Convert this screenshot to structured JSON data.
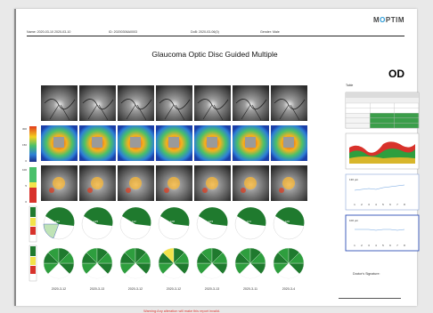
{
  "logo": {
    "prefix": "M",
    "o": "O",
    "suffix": "PTIM"
  },
  "header": {
    "name": "Name: 2020-03-10 2020-03-10",
    "id": "ID: 20200306A0003",
    "dob": "DoB: 2020-03-06(0)",
    "gender": "Gender: Male"
  },
  "title": "Glaucoma Optic Disc Guided Multiple",
  "eye": "OD",
  "table_title": "Table",
  "signature_label": "Doctor's Signature:",
  "warning": "Warning:Any alteration will make this report invalid.",
  "scale_labels": {
    "thickness": [
      "300",
      "150",
      "0"
    ],
    "deviation": [
      "100",
      "5",
      "0"
    ]
  },
  "dates": [
    "2020-3-12",
    "2020-3-13",
    "2020-3-12",
    "2020-3-12",
    "2020-3-13",
    "2020-3-11",
    "2020-3-4"
  ],
  "wedge_values": [
    "150",
    "135",
    "112",
    "108",
    "103",
    "101",
    "100"
  ],
  "trend_labels": {
    "chart_a": "130 μm",
    "chart_b": "100 μm",
    "x": [
      "1",
      "2",
      "3",
      "4",
      "5",
      "6",
      "7",
      "8"
    ]
  },
  "colors": {
    "green": "#1f7a2e",
    "light_green": "#bfe3b6",
    "yellow": "#f2e34a",
    "red": "#d8322b",
    "blue": "#2f4fb5"
  }
}
